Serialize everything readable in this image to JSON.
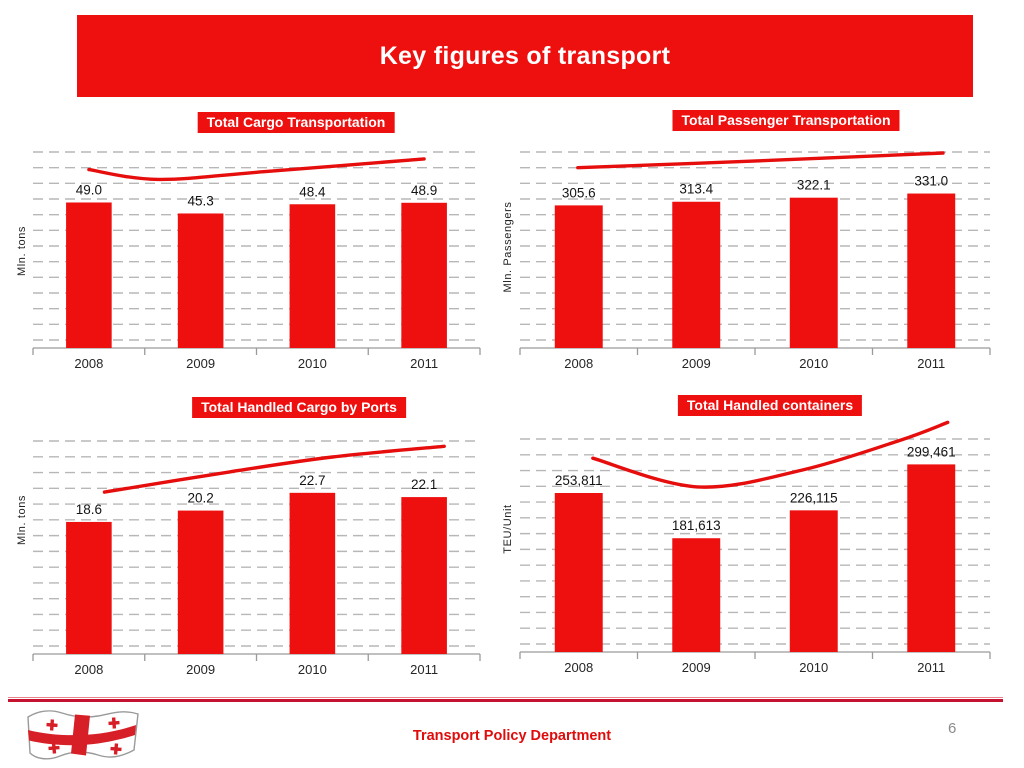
{
  "slide": {
    "title": "Key figures of transport",
    "footer_text": "Transport Policy Department",
    "page_number": "6",
    "accent_red": "#ee0f0f"
  },
  "chart_data": [
    {
      "type": "bar",
      "title": "Total Cargo Transportation",
      "ylabel": "Mln. tons",
      "categories": [
        "2008",
        "2009",
        "2010",
        "2011"
      ],
      "values": [
        49.0,
        45.3,
        48.4,
        48.9
      ],
      "labels": [
        "49.0",
        "45.3",
        "48.4",
        "48.9"
      ],
      "ylim": [
        0,
        66
      ],
      "grid": "dashed-horizontal",
      "legend": "none",
      "bar_color": "#ee0f0f",
      "trend_color": "#e60d0d",
      "trend": [
        [
          0.125,
          0.09
        ],
        [
          0.28,
          0.14
        ],
        [
          0.52,
          0.1
        ],
        [
          0.875,
          0.035
        ]
      ]
    },
    {
      "type": "bar",
      "title": "Total Passenger Transportation",
      "ylabel": "Mln. Passengers",
      "categories": [
        "2008",
        "2009",
        "2010",
        "2011"
      ],
      "values": [
        305.6,
        313.4,
        322.1,
        331.0
      ],
      "labels": [
        "305.6",
        "313.4",
        "322.1",
        "331.0"
      ],
      "ylim": [
        0,
        420
      ],
      "grid": "dashed-horizontal",
      "legend": "none",
      "bar_color": "#ee0f0f",
      "trend_color": "#e60d0d",
      "trend": [
        [
          0.123,
          0.08
        ],
        [
          0.51,
          0.045
        ],
        [
          0.9,
          0.005
        ]
      ]
    },
    {
      "type": "bar",
      "title": "Total Handled Cargo by Ports",
      "ylabel": "Mln. tons",
      "categories": [
        "2008",
        "2009",
        "2010",
        "2011"
      ],
      "values": [
        18.6,
        20.2,
        22.7,
        22.1
      ],
      "labels": [
        "18.6",
        "20.2",
        "22.7",
        "22.1"
      ],
      "ylim": [
        0,
        30
      ],
      "grid": "dashed-horizontal",
      "legend": "none",
      "bar_color": "#ee0f0f",
      "trend_color": "#e60d0d",
      "trend": [
        [
          0.16,
          0.24
        ],
        [
          0.44,
          0.145
        ],
        [
          0.67,
          0.075
        ],
        [
          0.92,
          0.025
        ]
      ]
    },
    {
      "type": "bar",
      "title": "Total Handled containers",
      "ylabel": "TEU/Unit",
      "categories": [
        "2008",
        "2009",
        "2010",
        "2011"
      ],
      "values": [
        253811,
        181613,
        226115,
        299461
      ],
      "labels": [
        "253,811",
        "181,613",
        "226,115",
        "299,461"
      ],
      "ylim": [
        0,
        340000
      ],
      "grid": "dashed-horizontal",
      "legend": "none",
      "bar_color": "#ee0f0f",
      "trend_color": "#e60d0d",
      "trend": [
        [
          0.155,
          0.09
        ],
        [
          0.377,
          0.225
        ],
        [
          0.6,
          0.146
        ],
        [
          0.81,
          0.005
        ],
        [
          0.91,
          -0.078
        ]
      ]
    }
  ]
}
